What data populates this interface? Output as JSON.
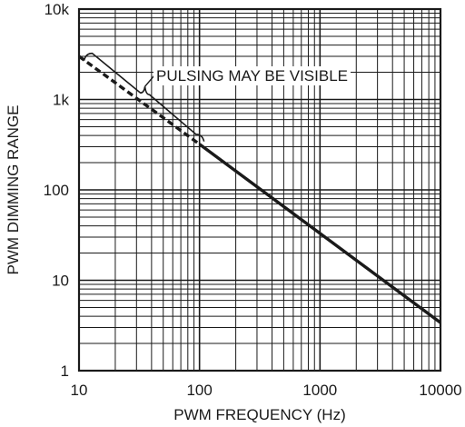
{
  "chart_data": {
    "type": "line",
    "xlabel": "PWM FREQUENCY (Hz)",
    "ylabel": "PWM DIMMING RANGE",
    "xscale": "log",
    "yscale": "log",
    "xlim": [
      10,
      10000
    ],
    "ylim": [
      1,
      10000
    ],
    "grid": true,
    "x_ticks": [
      {
        "value": 10,
        "label": "10"
      },
      {
        "value": 100,
        "label": "100"
      },
      {
        "value": 1000,
        "label": "1000"
      },
      {
        "value": 10000,
        "label": "10000"
      }
    ],
    "y_ticks": [
      {
        "value": 1,
        "label": "1"
      },
      {
        "value": 10,
        "label": "10"
      },
      {
        "value": 100,
        "label": "100"
      },
      {
        "value": 1000,
        "label": "1k"
      },
      {
        "value": 10000,
        "label": "10k"
      }
    ],
    "series": [
      {
        "style": "dashed",
        "x": [
          10,
          100
        ],
        "y": [
          3000,
          320
        ]
      },
      {
        "style": "solid",
        "x": [
          100,
          10000
        ],
        "y": [
          320,
          3.4
        ]
      }
    ],
    "annotation": {
      "text": "PULSING MAY BE VISIBLE",
      "x_range": [
        12,
        100
      ]
    }
  }
}
